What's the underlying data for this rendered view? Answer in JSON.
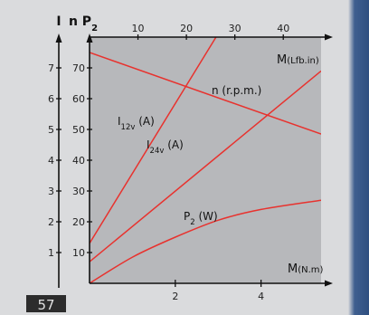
{
  "figure_tab": "57",
  "chart_data": {
    "type": "line",
    "axes": {
      "left_outer": {
        "label": "I",
        "ticks": [
          1,
          2,
          3,
          4,
          5,
          6,
          7
        ],
        "range": [
          0,
          8
        ]
      },
      "left_inner": {
        "label": "n P₂",
        "label_main": "n P",
        "label_sub": "2",
        "ticks": [
          10,
          20,
          30,
          40,
          50,
          60,
          70
        ],
        "range": [
          0,
          80
        ]
      },
      "x_bottom": {
        "label": "M(N.m)",
        "label_main": "M",
        "label_unit": "(N.m)",
        "ticks": [
          2,
          4
        ],
        "range": [
          0,
          5.4
        ]
      },
      "x_top": {
        "label": "M(Lfb.in)",
        "label_main": "M",
        "label_unit": "(Lfb.in)",
        "ticks": [
          10,
          20,
          30,
          40
        ],
        "range": [
          0,
          47.8
        ]
      }
    },
    "series": [
      {
        "name": "I12v (A)",
        "label_main": "I",
        "label_sub": "12v",
        "label_tail": " (A)",
        "axis": "left_outer",
        "x": [
          0,
          2.95
        ],
        "y": [
          1.3,
          8.0
        ]
      },
      {
        "name": "I24v (A)",
        "label_main": "I",
        "label_sub": "24v",
        "label_tail": " (A)",
        "axis": "left_outer",
        "x": [
          0,
          5.4
        ],
        "y": [
          0.7,
          6.9
        ]
      },
      {
        "name": "n (r.p.m.)",
        "label_main": "n (r.p.m.)",
        "axis": "left_inner",
        "x": [
          0,
          5.4
        ],
        "y": [
          75,
          48.5
        ]
      },
      {
        "name": "P2 (W)",
        "label_main": "P",
        "label_sub": "2",
        "label_tail": " (W)",
        "axis": "left_inner",
        "x": [
          0,
          1,
          2,
          3,
          4,
          5.4
        ],
        "y": [
          0,
          8.5,
          15,
          20.5,
          24,
          27
        ]
      }
    ],
    "grid": false,
    "colors": {
      "plot_bg": "#b7b8bb",
      "curve": "#e8322e",
      "axis": "#111111"
    }
  }
}
